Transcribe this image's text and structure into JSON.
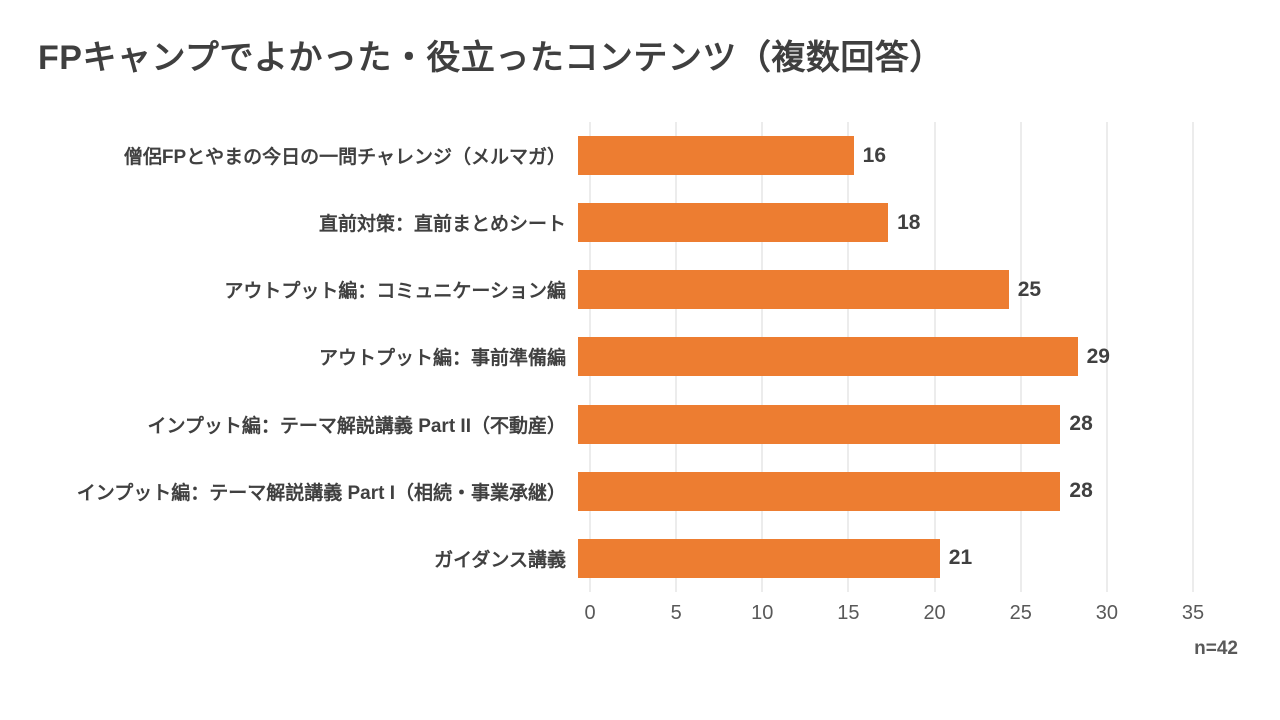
{
  "title": "FPキャンプでよかった・役立ったコンテンツ（複数回答）",
  "note": "n=42",
  "colors": {
    "bar": "#ed7d31",
    "gridline": "#d9d9d9",
    "title_text": "#3f3f3f",
    "label_text": "#404040",
    "tick_text": "#595959"
  },
  "chart_data": {
    "type": "bar",
    "orientation": "horizontal",
    "title": "FPキャンプでよかった・役立ったコンテンツ（複数回答）",
    "categories": [
      "僧侶FPとやまの今日の一問チャレンジ（メルマガ）",
      "直前対策：直前まとめシート",
      "アウトプット編：コミュニケーション編",
      "アウトプット編：事前準備編",
      "インプット編：テーマ解説講義 Part II（不動産）",
      "インプット編：テーマ解説講義 Part I（相続・事業承継）",
      "ガイダンス講義"
    ],
    "values": [
      16,
      18,
      25,
      29,
      28,
      28,
      21
    ],
    "xlim": [
      0,
      35
    ],
    "xticks": [
      0,
      5,
      10,
      15,
      20,
      25,
      30,
      35
    ],
    "xlabel": "",
    "ylabel": "",
    "grid": true,
    "legend": false,
    "annotation": "n=42",
    "bar_color": "#ed7d31"
  }
}
